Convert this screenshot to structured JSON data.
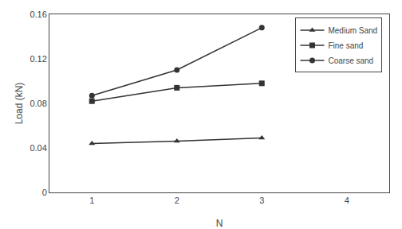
{
  "chart_data": {
    "type": "line",
    "x": [
      1,
      2,
      3
    ],
    "series": [
      {
        "name": "Medium Sand",
        "color": "#333333",
        "marker": "triangle",
        "values": [
          0.044,
          0.046,
          0.049
        ]
      },
      {
        "name": "Fine sand",
        "color": "#333333",
        "marker": "square",
        "values": [
          0.082,
          0.094,
          0.098
        ]
      },
      {
        "name": "Coarse sand",
        "color": "#333333",
        "marker": "circle",
        "values": [
          0.087,
          0.11,
          0.148
        ]
      }
    ],
    "xlabel": "N",
    "ylabel": "Load (kN)",
    "xlim": [
      0.5,
      4.5
    ],
    "xticks": [
      1,
      2,
      3,
      4
    ],
    "ylim": [
      0,
      0.16
    ],
    "yticks": [
      0,
      0.04,
      0.08,
      0.12,
      0.16
    ],
    "grid": false,
    "legend": "upper right"
  }
}
